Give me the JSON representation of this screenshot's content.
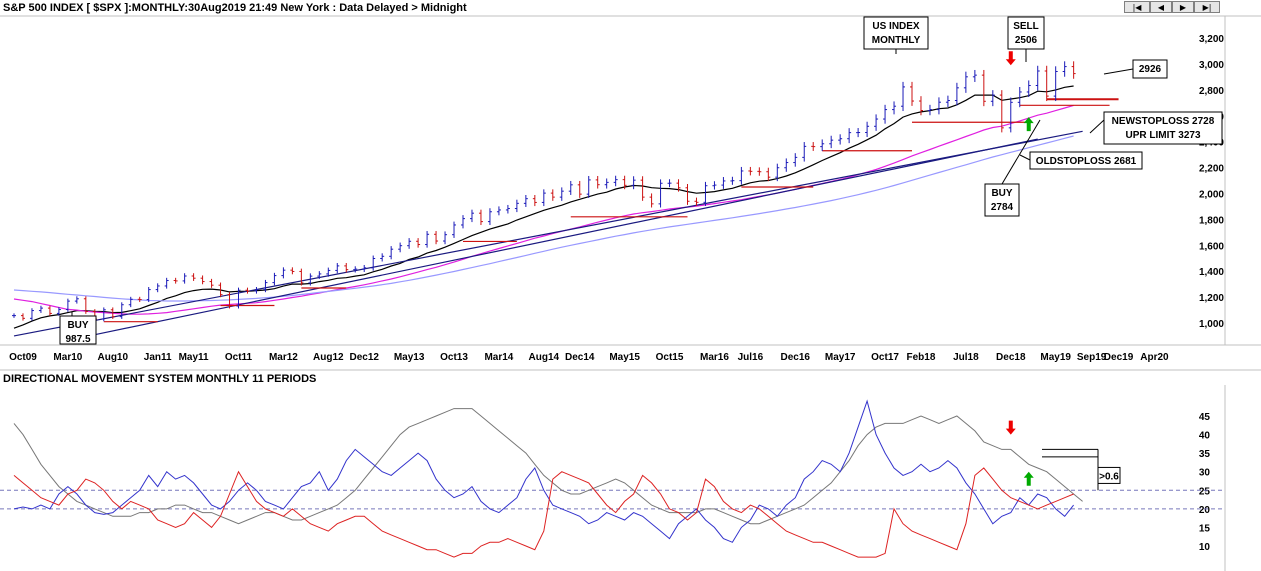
{
  "header": {
    "title": "S&P 500 INDEX [ $SPX ]:MONTHLY:30Aug2019 21:49 New York : Data Delayed > Midnight",
    "nav": [
      "first",
      "prev",
      "next",
      "last"
    ]
  },
  "chart_data": [
    {
      "type": "candlestick",
      "title": "S&P 500 INDEX [ $SPX ]:MONTHLY:30Aug2019 21:49 New York : Data Delayed > Midnight",
      "x_ticks": [
        "Oct09",
        "Mar10",
        "Aug10",
        "Jan11",
        "May11",
        "Oct11",
        "Mar12",
        "Aug12",
        "Dec12",
        "May13",
        "Oct13",
        "Mar14",
        "Aug14",
        "Dec14",
        "May15",
        "Oct15",
        "Mar16",
        "Jul16",
        "Dec16",
        "May17",
        "Oct17",
        "Feb18",
        "Jul18",
        "Dec18",
        "May19",
        "Sep19",
        "Dec19",
        "Apr20"
      ],
      "y_ticks": [
        1000,
        1200,
        1400,
        1600,
        1800,
        2000,
        2200,
        2400,
        2600,
        2800,
        3000,
        3200
      ],
      "ylim": [
        860,
        3300
      ],
      "x_range": [
        "2009-09",
        "2020-04"
      ],
      "bars": {
        "start": "2009-09",
        "close": [
          1057,
          1036,
          1096,
          1115,
          1074,
          1104,
          1169,
          1187,
          1089,
          1031,
          1102,
          1049,
          1141,
          1183,
          1181,
          1258,
          1286,
          1328,
          1325,
          1363,
          1346,
          1320,
          1292,
          1219,
          1131,
          1253,
          1247,
          1258,
          1312,
          1366,
          1408,
          1398,
          1310,
          1362,
          1379,
          1406,
          1441,
          1412,
          1416,
          1426,
          1498,
          1515,
          1570,
          1597,
          1631,
          1606,
          1685,
          1633,
          1682,
          1757,
          1806,
          1848,
          1783,
          1859,
          1873,
          1884,
          1924,
          1960,
          1931,
          2003,
          1972,
          2018,
          2067,
          1995,
          2105,
          2068,
          2086,
          2107,
          2063,
          2103,
          1972,
          1920,
          2079,
          2080,
          2044,
          1940,
          1932,
          2060,
          2065,
          2097,
          2099,
          2174,
          2171,
          2168,
          2126,
          2199,
          2239,
          2279,
          2364,
          2362,
          2384,
          2412,
          2423,
          2470,
          2471,
          2519,
          2575,
          2648,
          2674,
          2823,
          2714,
          2641,
          2648,
          2705,
          2718,
          2816,
          2901,
          2914,
          2712,
          2760,
          2507,
          2704,
          2784,
          2834,
          2946,
          2752,
          2942,
          2980,
          2926
        ],
        "up_color": "#1a1ab8",
        "down_color": "#cc1111"
      },
      "series": [
        {
          "name": "",
          "color": "#000000",
          "values": [
            960,
            985,
            1015,
            1040,
            1055,
            1065,
            1080,
            1095,
            1095,
            1090,
            1088,
            1080,
            1082,
            1095,
            1110,
            1135,
            1160,
            1190,
            1210,
            1235,
            1250,
            1260,
            1262,
            1255,
            1240,
            1245,
            1245,
            1250,
            1255,
            1265,
            1285,
            1300,
            1300,
            1305,
            1320,
            1330,
            1345,
            1350,
            1362,
            1372,
            1395,
            1415,
            1440,
            1460,
            1490,
            1510,
            1540,
            1560,
            1585,
            1615,
            1645,
            1675,
            1700,
            1725,
            1745,
            1765,
            1795,
            1820,
            1845,
            1870,
            1890,
            1910,
            1935,
            1955,
            1975,
            1995,
            2010,
            2035,
            2050,
            2062,
            2058,
            2045,
            2040,
            2038,
            2030,
            2015,
            2002,
            2008,
            2015,
            2028,
            2040,
            2062,
            2083,
            2095,
            2100,
            2115,
            2135,
            2160,
            2190,
            2222,
            2255,
            2285,
            2315,
            2350,
            2380,
            2415,
            2450,
            2500,
            2540,
            2590,
            2615,
            2630,
            2640,
            2655,
            2660,
            2685,
            2720,
            2760,
            2760,
            2760,
            2720,
            2730,
            2740,
            2755,
            2790,
            2785,
            2800,
            2820,
            2830
          ]
        },
        {
          "name": "",
          "color": "#e020e0",
          "values": [
            1185,
            1175,
            1165,
            1150,
            1135,
            1120,
            1105,
            1100,
            1090,
            1085,
            1080,
            1075,
            1070,
            1068,
            1068,
            1070,
            1075,
            1080,
            1090,
            1100,
            1110,
            1120,
            1130,
            1138,
            1143,
            1148,
            1152,
            1157,
            1165,
            1175,
            1185,
            1197,
            1207,
            1220,
            1232,
            1245,
            1258,
            1270,
            1282,
            1295,
            1310,
            1325,
            1340,
            1357,
            1375,
            1393,
            1412,
            1430,
            1450,
            1470,
            1492,
            1515,
            1535,
            1555,
            1575,
            1595,
            1615,
            1635,
            1655,
            1672,
            1690,
            1708,
            1725,
            1742,
            1760,
            1778,
            1795,
            1812,
            1828,
            1842,
            1852,
            1860,
            1870,
            1880,
            1888,
            1895,
            1902,
            1912,
            1922,
            1932,
            1942,
            1952,
            1965,
            1978,
            1990,
            2003,
            2018,
            2032,
            2048,
            2063,
            2078,
            2093,
            2108,
            2125,
            2145,
            2165,
            2185,
            2210,
            2235,
            2262,
            2290,
            2315,
            2340,
            2365,
            2390,
            2415,
            2440,
            2465,
            2490,
            2510,
            2520,
            2540,
            2560,
            2582,
            2605,
            2620,
            2640,
            2660,
            2680
          ]
        },
        {
          "name": "",
          "color": "#9999ff",
          "values": [
            1255,
            1250,
            1245,
            1240,
            1235,
            1228,
            1222,
            1216,
            1210,
            1205,
            1198,
            1192,
            1187,
            1182,
            1178,
            1174,
            1172,
            1170,
            1170,
            1170,
            1171,
            1172,
            1174,
            1176,
            1178,
            1182,
            1186,
            1190,
            1195,
            1200,
            1206,
            1212,
            1220,
            1228,
            1236,
            1244,
            1252,
            1260,
            1268,
            1277,
            1286,
            1296,
            1306,
            1318,
            1330,
            1343,
            1356,
            1370,
            1384,
            1398,
            1413,
            1428,
            1443,
            1458,
            1474,
            1490,
            1506,
            1522,
            1538,
            1554,
            1570,
            1585,
            1600,
            1614,
            1628,
            1642,
            1656,
            1670,
            1683,
            1696,
            1708,
            1720,
            1731,
            1742,
            1752,
            1762,
            1772,
            1782,
            1792,
            1802,
            1812,
            1823,
            1834,
            1845,
            1856,
            1868,
            1880,
            1892,
            1905,
            1918,
            1931,
            1945,
            1960,
            1975,
            1991,
            2008,
            2025,
            2043,
            2062,
            2082,
            2102,
            2122,
            2142,
            2162,
            2182,
            2202,
            2222,
            2242,
            2262,
            2282,
            2300,
            2318,
            2336,
            2354,
            2372,
            2390,
            2408,
            2426,
            2444
          ]
        }
      ],
      "trendlines": [
        {
          "color": "#1a1a80",
          "from": [
            "2009-09",
            900
          ],
          "to": [
            "2019-08",
            2480
          ]
        },
        {
          "color": "#1a1a80",
          "from": [
            "2010-06",
            910
          ],
          "to": [
            "2019-03",
            2420
          ]
        }
      ],
      "support_lines": [
        {
          "color": "#cc1111",
          "from": "2010-07",
          "to": "2011-01",
          "y": 1010
        },
        {
          "color": "#cc1111",
          "from": "2011-08",
          "to": "2012-02",
          "y": 1135
        },
        {
          "color": "#cc1111",
          "from": "2012-05",
          "to": "2012-10",
          "y": 1270
        },
        {
          "color": "#cc1111",
          "from": "2013-11",
          "to": "2014-05",
          "y": 1630
        },
        {
          "color": "#cc1111",
          "from": "2014-11",
          "to": "2015-12",
          "y": 1820
        },
        {
          "color": "#cc1111",
          "from": "2016-06",
          "to": "2017-02",
          "y": 2050
        },
        {
          "color": "#cc1111",
          "from": "2017-03",
          "to": "2018-01",
          "y": 2330
        },
        {
          "color": "#cc1111",
          "from": "2018-01",
          "to": "2019-02",
          "y": 2550
        },
        {
          "color": "#cc1111",
          "from": "2019-01",
          "to": "2019-11",
          "y": 2681
        },
        {
          "color": "#cc1111",
          "from": "2019-04",
          "to": "2019-12",
          "y": 2728
        }
      ],
      "arrows": [
        {
          "direction": "down",
          "color": "#ee0000",
          "at": "2018-12",
          "y": 2990
        },
        {
          "direction": "up",
          "color": "#00aa00",
          "at": "2019-02",
          "y": 2590
        }
      ],
      "annotations": [
        {
          "id": "buy1",
          "lines": [
            "BUY",
            "987.5"
          ]
        },
        {
          "id": "us",
          "lines": [
            "US INDEX",
            "MONTHLY"
          ]
        },
        {
          "id": "sell",
          "lines": [
            "SELL",
            "2506"
          ]
        },
        {
          "id": "p2926",
          "lines": [
            "2926"
          ]
        },
        {
          "id": "nsl",
          "lines": [
            "NEWSTOPLOSS 2728",
            "UPR LIMIT 3273"
          ]
        },
        {
          "id": "osl",
          "lines": [
            "OLDSTOPLOSS 2681"
          ]
        },
        {
          "id": "buy2",
          "lines": [
            "BUY",
            "2784"
          ]
        }
      ]
    },
    {
      "type": "line",
      "title": "DIRECTIONAL MOVEMENT SYSTEM MONTHLY 11 PERIODS",
      "y_ticks": [
        10,
        15,
        20,
        25,
        30,
        35,
        40,
        45
      ],
      "ylim": [
        5,
        50
      ],
      "ref_lines": [
        20,
        25
      ],
      "x_range": [
        "2009-09",
        "2020-04"
      ],
      "start": "2009-09",
      "series": [
        {
          "name": "",
          "color": "#777777",
          "values": [
            43,
            40,
            36,
            32,
            29,
            26,
            24,
            22,
            21,
            20,
            19,
            18,
            18,
            18,
            19,
            19,
            20,
            20,
            21,
            21,
            20,
            19,
            19,
            18,
            17,
            16,
            17,
            18,
            19,
            19,
            18,
            17,
            17,
            18,
            19,
            20,
            21,
            23,
            25,
            28,
            31,
            34,
            37,
            40,
            42,
            43,
            44,
            45,
            46,
            47,
            47,
            47,
            45,
            43,
            41,
            39,
            37,
            35,
            32,
            29,
            27,
            25,
            24,
            24,
            25,
            26,
            27,
            28,
            27,
            25,
            23,
            21,
            20,
            19,
            19,
            19,
            19,
            20,
            20,
            19,
            18,
            17,
            16,
            16,
            17,
            18,
            19,
            20,
            21,
            23,
            25,
            27,
            30,
            33,
            37,
            40,
            42,
            43,
            43,
            43,
            44,
            45,
            44,
            43,
            44,
            45,
            43,
            41,
            38,
            37,
            36,
            36,
            34,
            32,
            31,
            30,
            28,
            26,
            24,
            22
          ]
        },
        {
          "name": "",
          "color": "#3333cc",
          "values": [
            20,
            20.5,
            20,
            21,
            20,
            24,
            26,
            24,
            21,
            19,
            18.5,
            19,
            21,
            23,
            25,
            29,
            26,
            30,
            28,
            29,
            27,
            24,
            21,
            20,
            22,
            25,
            27,
            25,
            22,
            21,
            20,
            23,
            26,
            27,
            30,
            25,
            28,
            33,
            36,
            34,
            32,
            30,
            29,
            31,
            33,
            35,
            33,
            28,
            25,
            23,
            24,
            26,
            22,
            20,
            19,
            21,
            23,
            28,
            31,
            25,
            21,
            20,
            19,
            18,
            16,
            17,
            19,
            18,
            17,
            19,
            18,
            16,
            14,
            12,
            16,
            18,
            20,
            17,
            15,
            12,
            11,
            15,
            17,
            21,
            20,
            18,
            21,
            23,
            28,
            30,
            33,
            32,
            30,
            35,
            42,
            49,
            40,
            35,
            31,
            29,
            30,
            32,
            30,
            31,
            33,
            31,
            27,
            24,
            20,
            16,
            18,
            19,
            23,
            21,
            24,
            23,
            20,
            18,
            21
          ]
        },
        {
          "name": "",
          "color": "#dd2222",
          "values": [
            29,
            27,
            25,
            23,
            22,
            21,
            24,
            25,
            28,
            27,
            25,
            22,
            20,
            22,
            21,
            20,
            17,
            16,
            15,
            16,
            19,
            17,
            15,
            18,
            24,
            30,
            26,
            22,
            20,
            19,
            18,
            20,
            18,
            16,
            15,
            14,
            16,
            17,
            18,
            18,
            16,
            14,
            13,
            12,
            11,
            10,
            9,
            9,
            8,
            7,
            8,
            8,
            10,
            11,
            11,
            12,
            11,
            10,
            9,
            14,
            28,
            30,
            29,
            28,
            27,
            24,
            21,
            19,
            22,
            24,
            29,
            27,
            24,
            20,
            19,
            17,
            19,
            28,
            26,
            22,
            20,
            19,
            21,
            20,
            18,
            16,
            14,
            13,
            12,
            11,
            11,
            10,
            9,
            8,
            7,
            7,
            7,
            8,
            20,
            16,
            14,
            13,
            12,
            11,
            10,
            9,
            16,
            29,
            31,
            28,
            25,
            23,
            22,
            21,
            20,
            21,
            22,
            23,
            24
          ]
        }
      ],
      "markers": [
        {
          "direction": "down",
          "color": "#ee0000",
          "at": "2018-12",
          "y": 40
        },
        {
          "direction": "up",
          "color": "#00aa00",
          "at": "2019-02",
          "y": 30
        }
      ],
      "annotations": [
        {
          "id": "dms",
          "lines": [
            ">0.6"
          ]
        }
      ]
    }
  ]
}
